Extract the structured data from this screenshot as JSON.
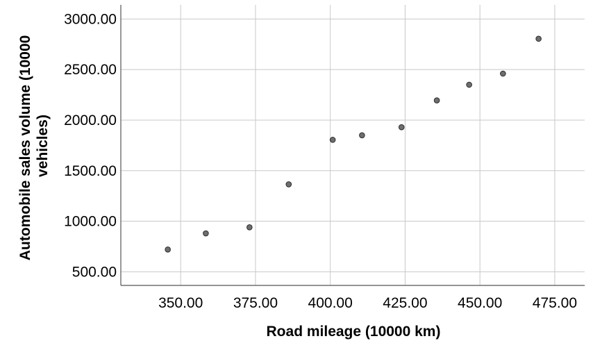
{
  "chart_data": {
    "type": "scatter",
    "xlabel": "Road mileage (10000 km)",
    "ylabel_lines": [
      "Automobile sales volume (10000",
      "vehicles)"
    ],
    "xlim": [
      330,
      485
    ],
    "ylim": [
      365,
      3140
    ],
    "x_ticks": [
      350,
      375,
      400,
      425,
      450,
      475
    ],
    "y_ticks": [
      500,
      1000,
      1500,
      2000,
      2500,
      3000
    ],
    "x_tick_labels": [
      "350.00",
      "375.00",
      "400.00",
      "425.00",
      "450.00",
      "475.00"
    ],
    "y_tick_labels": [
      "500.00",
      "1000.00",
      "1500.00",
      "2000.00",
      "2500.00",
      "3000.00"
    ],
    "grid": true,
    "colors": {
      "point_fill": "#6e6e6e",
      "point_stroke": "#2b2b2b",
      "grid": "#c8c8c8",
      "axis": "#555555"
    },
    "points": [
      {
        "x": 345.7,
        "y": 720
      },
      {
        "x": 358.4,
        "y": 880
      },
      {
        "x": 373.0,
        "y": 940
      },
      {
        "x": 386.1,
        "y": 1365
      },
      {
        "x": 400.8,
        "y": 1805
      },
      {
        "x": 410.6,
        "y": 1850
      },
      {
        "x": 423.8,
        "y": 1930
      },
      {
        "x": 435.6,
        "y": 2195
      },
      {
        "x": 446.4,
        "y": 2350
      },
      {
        "x": 457.7,
        "y": 2460
      },
      {
        "x": 469.6,
        "y": 2805
      }
    ]
  }
}
